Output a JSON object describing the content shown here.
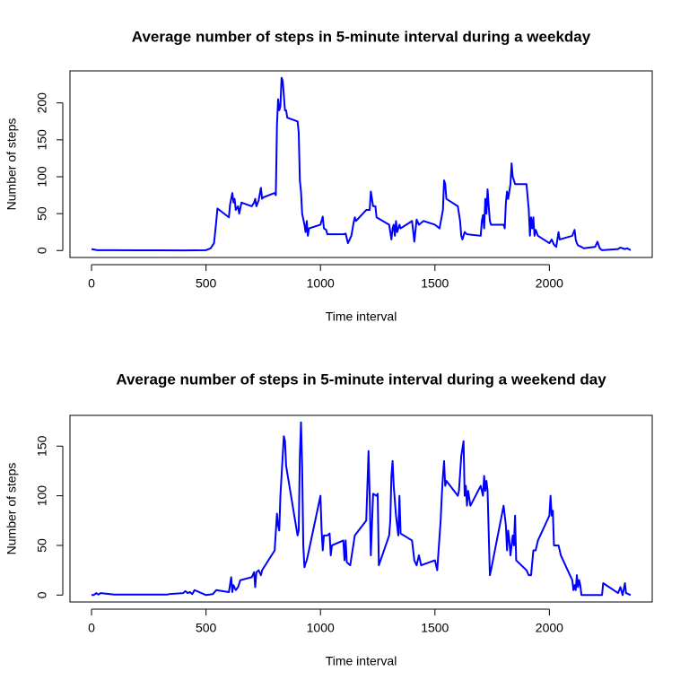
{
  "chart_data": [
    {
      "type": "line",
      "title": "Average number of steps in 5-minute interval during a weekday",
      "x_label": "Time interval",
      "y_label": "Number of steps",
      "color": "#0000ff",
      "x": [
        0,
        25,
        100,
        200,
        300,
        400,
        500,
        520,
        535,
        545,
        550,
        600,
        605,
        615,
        620,
        625,
        630,
        640,
        645,
        655,
        700,
        710,
        715,
        720,
        730,
        740,
        745,
        750,
        800,
        805,
        810,
        815,
        820,
        825,
        830,
        835,
        840,
        845,
        850,
        855,
        900,
        905,
        910,
        915,
        920,
        930,
        935,
        940,
        945,
        950,
        1000,
        1010,
        1015,
        1025,
        1030,
        1100,
        1110,
        1120,
        1135,
        1145,
        1150,
        1155,
        1200,
        1215,
        1220,
        1225,
        1230,
        1240,
        1245,
        1300,
        1310,
        1315,
        1320,
        1325,
        1330,
        1335,
        1345,
        1350,
        1400,
        1410,
        1420,
        1430,
        1450,
        1500,
        1520,
        1535,
        1540,
        1545,
        1550,
        1600,
        1610,
        1615,
        1620,
        1630,
        1640,
        1700,
        1705,
        1710,
        1715,
        1720,
        1725,
        1730,
        1735,
        1740,
        1745,
        1800,
        1805,
        1810,
        1815,
        1820,
        1830,
        1835,
        1840,
        1845,
        1850,
        1900,
        1910,
        1915,
        1920,
        1925,
        1930,
        1935,
        1940,
        1950,
        2000,
        2010,
        2020,
        2030,
        2040,
        2045,
        2100,
        2110,
        2115,
        2120,
        2125,
        2140,
        2150,
        2200,
        2210,
        2220,
        2230,
        2300,
        2310,
        2330,
        2340,
        2355
      ],
      "values": [
        2,
        0.5,
        0.5,
        0.3,
        0.3,
        0.2,
        0.5,
        3,
        10,
        40,
        57,
        45,
        62,
        78,
        65,
        70,
        55,
        60,
        50,
        65,
        60,
        65,
        70,
        60,
        68,
        85,
        70,
        72,
        78,
        75,
        170,
        205,
        190,
        195,
        234,
        230,
        210,
        190,
        190,
        180,
        175,
        160,
        95,
        80,
        50,
        35,
        25,
        40,
        20,
        30,
        35,
        46,
        30,
        28,
        22,
        22,
        23,
        10,
        20,
        38,
        45,
        40,
        55,
        55,
        80,
        70,
        60,
        60,
        45,
        35,
        15,
        30,
        35,
        20,
        40,
        25,
        35,
        30,
        40,
        12,
        42,
        35,
        40,
        35,
        30,
        55,
        95,
        90,
        70,
        60,
        40,
        20,
        15,
        25,
        22,
        20,
        40,
        48,
        30,
        70,
        50,
        83,
        60,
        40,
        35,
        35,
        30,
        65,
        80,
        70,
        90,
        118,
        100,
        95,
        90,
        90,
        55,
        20,
        45,
        30,
        45,
        20,
        28,
        20,
        10,
        15,
        8,
        5,
        25,
        15,
        20,
        28,
        15,
        10,
        7,
        5,
        3,
        5,
        12,
        3,
        0.5,
        2,
        4,
        2,
        3,
        0.5
      ],
      "xlim": [
        -94.2,
        2449.2
      ],
      "ylim": [
        -9.4,
        243.4
      ],
      "xticks": [
        0,
        500,
        1000,
        1500,
        2000
      ],
      "yticks": [
        0,
        50,
        100,
        150,
        200
      ]
    },
    {
      "type": "line",
      "title": "Average number of steps in 5-minute interval during a weekend day",
      "x_label": "Time interval",
      "y_label": "Number of steps",
      "color": "#0000ff",
      "x": [
        0,
        10,
        20,
        30,
        40,
        100,
        200,
        300,
        330,
        340,
        400,
        410,
        420,
        430,
        440,
        450,
        500,
        515,
        530,
        545,
        600,
        610,
        615,
        620,
        630,
        640,
        650,
        700,
        710,
        715,
        720,
        730,
        740,
        745,
        800,
        810,
        815,
        820,
        825,
        830,
        840,
        845,
        850,
        900,
        905,
        910,
        915,
        920,
        925,
        930,
        935,
        940,
        945,
        1000,
        1005,
        1010,
        1015,
        1030,
        1040,
        1045,
        1050,
        1100,
        1105,
        1110,
        1115,
        1130,
        1140,
        1150,
        1200,
        1210,
        1215,
        1220,
        1230,
        1245,
        1250,
        1255,
        1300,
        1305,
        1310,
        1315,
        1320,
        1330,
        1340,
        1345,
        1350,
        1400,
        1410,
        1420,
        1430,
        1440,
        1500,
        1510,
        1525,
        1530,
        1535,
        1540,
        1545,
        1550,
        1600,
        1605,
        1615,
        1625,
        1630,
        1635,
        1640,
        1645,
        1655,
        1700,
        1710,
        1715,
        1720,
        1725,
        1730,
        1740,
        1745,
        1800,
        1810,
        1815,
        1820,
        1825,
        1830,
        1840,
        1845,
        1850,
        1855,
        1900,
        1910,
        1920,
        1930,
        1940,
        1950,
        2000,
        2005,
        2010,
        2015,
        2020,
        2030,
        2040,
        2050,
        2100,
        2105,
        2110,
        2115,
        2120,
        2125,
        2130,
        2135,
        2140,
        2200,
        2230,
        2235,
        2300,
        2310,
        2320,
        2330,
        2335,
        2355
      ],
      "values": [
        0,
        0,
        2,
        0.5,
        2,
        0.5,
        0.5,
        0.5,
        0.5,
        1,
        2,
        4,
        2,
        3,
        1,
        5,
        0,
        0.5,
        1,
        5,
        3,
        18,
        3,
        10,
        5,
        8,
        15,
        18,
        23,
        8,
        23,
        25,
        20,
        25,
        45,
        82,
        70,
        65,
        100,
        120,
        160,
        155,
        130,
        60,
        65,
        140,
        174,
        130,
        50,
        28,
        32,
        35,
        40,
        100,
        65,
        45,
        60,
        60,
        62,
        40,
        50,
        55,
        35,
        55,
        33,
        30,
        45,
        60,
        75,
        145,
        100,
        40,
        102,
        100,
        102,
        30,
        60,
        75,
        120,
        135,
        110,
        80,
        60,
        100,
        62,
        55,
        35,
        30,
        40,
        30,
        35,
        25,
        75,
        100,
        120,
        135,
        110,
        115,
        100,
        105,
        140,
        155,
        100,
        110,
        90,
        105,
        90,
        110,
        100,
        120,
        105,
        115,
        105,
        20,
        25,
        90,
        70,
        45,
        65,
        55,
        40,
        60,
        50,
        80,
        35,
        25,
        20,
        20,
        45,
        45,
        55,
        80,
        100,
        80,
        85,
        50,
        50,
        50,
        40,
        15,
        5,
        10,
        5,
        20,
        8,
        15,
        10,
        0,
        0,
        0,
        12,
        2,
        8,
        0,
        12,
        2,
        0
      ],
      "xlim": [
        -94.2,
        2449.2
      ],
      "ylim": [
        -6.96,
        180.96
      ],
      "xticks": [
        0,
        500,
        1000,
        1500,
        2000
      ],
      "yticks": [
        0,
        50,
        100,
        150
      ]
    }
  ]
}
